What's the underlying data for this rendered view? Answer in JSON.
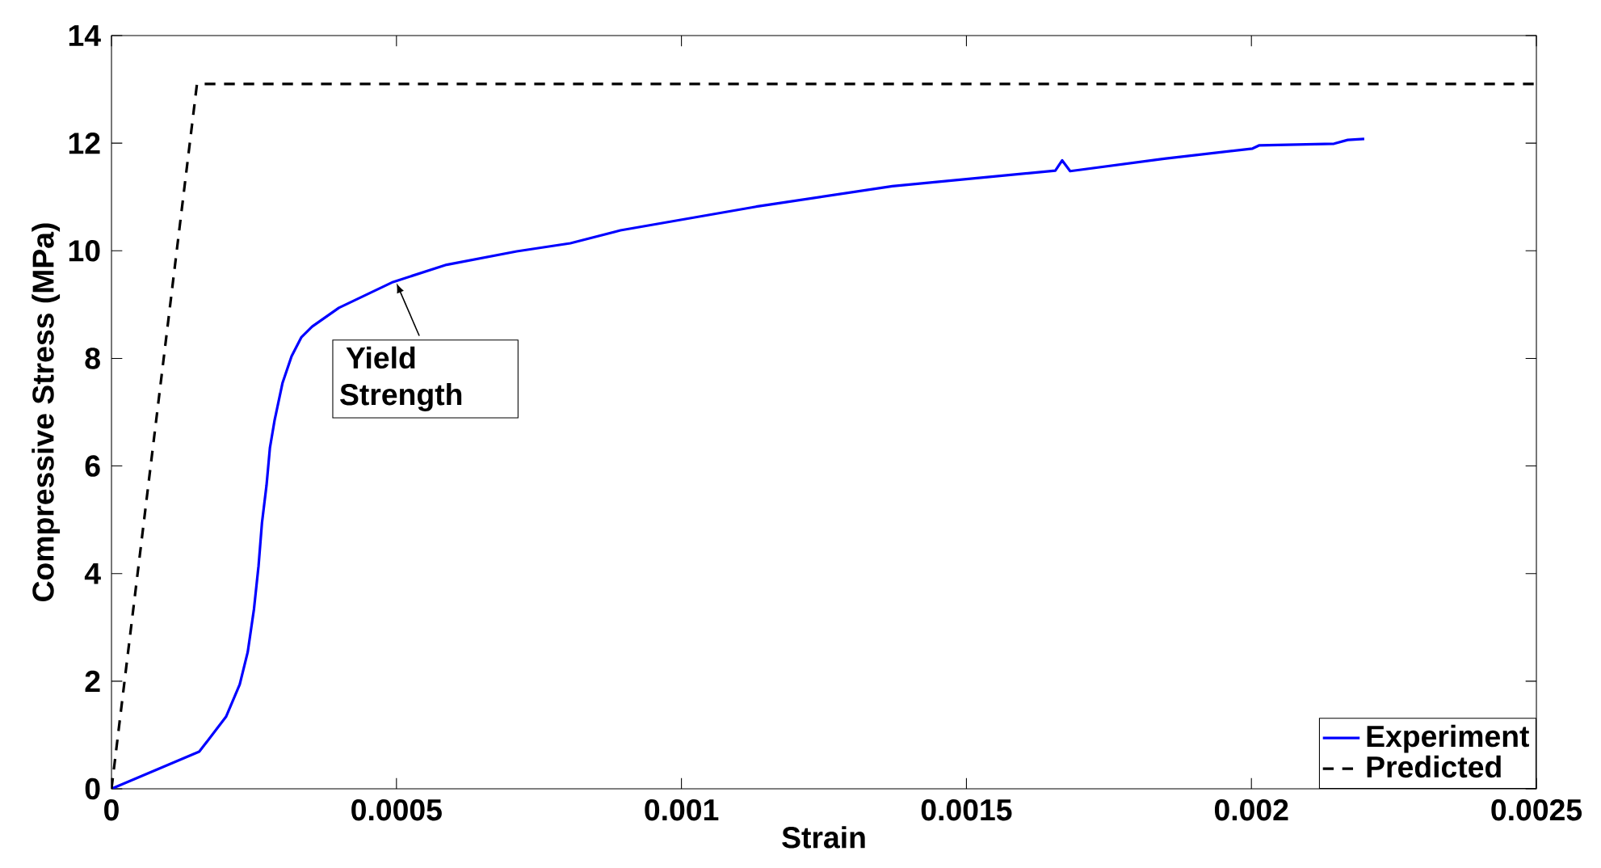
{
  "chart_data": {
    "type": "line",
    "xlabel": "Strain",
    "ylabel": "Compressive Stress (MPa)",
    "xlim": [
      0,
      0.0025
    ],
    "ylim": [
      0,
      14
    ],
    "xticks": [
      0,
      0.0005,
      0.001,
      0.0015,
      0.002,
      0.0025
    ],
    "yticks": [
      0,
      2,
      4,
      6,
      8,
      10,
      12,
      14
    ],
    "grid": false,
    "legend": "bottom right",
    "marker": "none",
    "annotations": [
      {
        "text": "Yield Strength",
        "x": 0.0005,
        "y": 9.4
      }
    ],
    "series": [
      {
        "name": "Experiment",
        "color": "#0000ff",
        "line_style": "solid",
        "x": [
          0,
          0.000154,
          0.000201,
          0.000225,
          0.000239,
          0.00025,
          0.000258,
          0.000264,
          0.000272,
          0.000278,
          0.000286,
          0.0003,
          0.000316,
          0.000333,
          0.000352,
          0.000399,
          0.000494,
          0.000588,
          0.000711,
          0.000805,
          0.000893,
          0.001131,
          0.00137,
          0.001656,
          0.001668,
          0.001682,
          0.001847,
          0.002002,
          0.002014,
          0.002145,
          0.002169,
          0.002198
        ],
        "values": [
          0,
          0.69,
          1.34,
          1.94,
          2.54,
          3.34,
          4.14,
          4.94,
          5.64,
          6.34,
          6.84,
          7.54,
          8.04,
          8.39,
          8.59,
          8.94,
          9.42,
          9.74,
          9.99,
          10.14,
          10.38,
          10.82,
          11.2,
          11.49,
          11.68,
          11.48,
          11.71,
          11.9,
          11.96,
          11.99,
          12.06,
          12.08
        ]
      },
      {
        "name": "Predicted",
        "color": "#000000",
        "line_style": "dashed",
        "x": [
          0,
          0.00015,
          0.0025
        ],
        "values": [
          0,
          13.1,
          13.1
        ]
      }
    ]
  }
}
